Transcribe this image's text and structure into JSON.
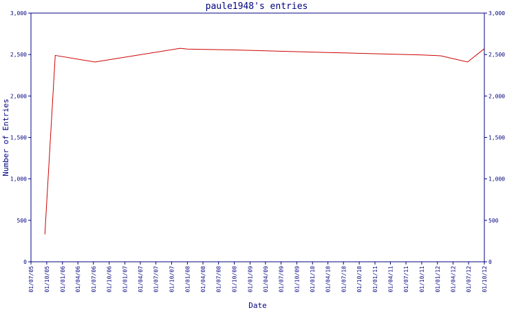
{
  "chart_data": {
    "type": "line",
    "title": "paule1948's entries",
    "xlabel": "Date",
    "ylabel": "Number of Entries",
    "ylim": [
      0,
      3000
    ],
    "y_ticks": [
      "0",
      "500",
      "1,000",
      "1,500",
      "2,000",
      "2,500",
      "3,000"
    ],
    "y_tick_values": [
      0,
      500,
      1000,
      1500,
      2000,
      2500,
      3000
    ],
    "x_ticks": [
      "01/07/05",
      "01/10/05",
      "01/01/06",
      "01/04/06",
      "01/07/06",
      "01/10/06",
      "01/01/07",
      "01/04/07",
      "01/07/07",
      "01/10/07",
      "01/01/08",
      "01/04/08",
      "01/07/08",
      "01/10/08",
      "01/01/09",
      "01/04/09",
      "01/07/09",
      "01/10/09",
      "01/01/10",
      "01/04/10",
      "01/07/10",
      "01/10/10",
      "01/01/11",
      "01/04/11",
      "01/07/11",
      "01/10/11",
      "01/01/12",
      "01/04/12",
      "01/07/12",
      "01/10/12"
    ],
    "grid": false,
    "colors": {
      "axis": "#000080",
      "text": "#000080",
      "line": "#cc0000",
      "background": "#ffffff"
    },
    "series": [
      {
        "values": [
          {
            "x": "2005-09-20",
            "y": 330
          },
          {
            "x": "2005-11-20",
            "y": 2490
          },
          {
            "x": "2006-07-10",
            "y": 2410
          },
          {
            "x": "2007-11-20",
            "y": 2575
          },
          {
            "x": "2008-01-01",
            "y": 2565
          },
          {
            "x": "2008-10-01",
            "y": 2555
          },
          {
            "x": "2009-07-01",
            "y": 2540
          },
          {
            "x": "2010-04-01",
            "y": 2525
          },
          {
            "x": "2011-01-01",
            "y": 2510
          },
          {
            "x": "2011-10-01",
            "y": 2495
          },
          {
            "x": "2012-01-20",
            "y": 2485
          },
          {
            "x": "2012-06-25",
            "y": 2410
          },
          {
            "x": "2012-10-01",
            "y": 2570
          }
        ]
      }
    ]
  }
}
